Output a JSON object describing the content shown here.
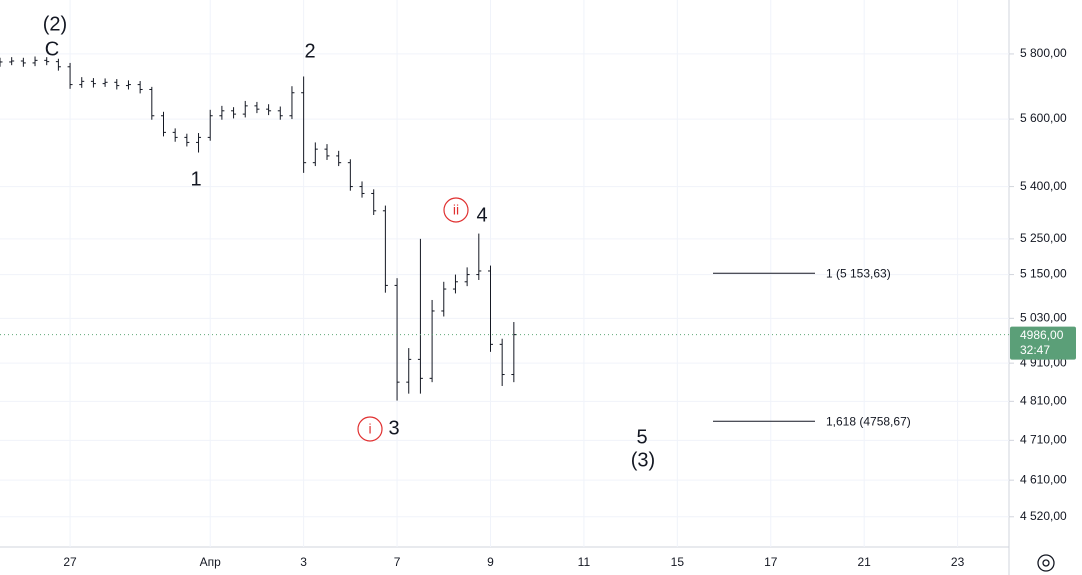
{
  "chart_data": {
    "type": "ohlc",
    "log_scale": true,
    "grid": true,
    "color": "#131722",
    "x": [
      -1.5,
      -1.25,
      -1,
      -0.75,
      -0.5,
      -0.25,
      0,
      0.25,
      0.5,
      0.75,
      1,
      1.25,
      1.5,
      1.75,
      2,
      2.25,
      2.5,
      2.75,
      3,
      3.25,
      3.5,
      3.75,
      4,
      4.25,
      4.5,
      4.75,
      5,
      5.25,
      5.5,
      5.75,
      6,
      6.25,
      6.5,
      6.75,
      7,
      7.25,
      7.5,
      7.75,
      8,
      8.25,
      8.5,
      8.75,
      9,
      9.25,
      9.5
    ],
    "open": [
      5770,
      5775,
      5778,
      5772,
      5780,
      5776,
      5760,
      5705,
      5715,
      5708,
      5712,
      5702,
      5705,
      5690,
      5610,
      5560,
      5545,
      5530,
      5545,
      5610,
      5625,
      5615,
      5640,
      5630,
      5625,
      5610,
      5680,
      5470,
      5510,
      5490,
      5470,
      5400,
      5380,
      5330,
      5120,
      4860,
      4920,
      4870,
      5050,
      5110,
      5130,
      5150,
      5160,
      4960,
      4880
    ],
    "high": [
      5788,
      5790,
      5788,
      5792,
      5790,
      5785,
      5772,
      5728,
      5725,
      5724,
      5722,
      5718,
      5716,
      5698,
      5622,
      5572,
      5556,
      5558,
      5628,
      5640,
      5636,
      5655,
      5652,
      5645,
      5638,
      5700,
      5730,
      5530,
      5525,
      5505,
      5480,
      5415,
      5392,
      5345,
      5140,
      4950,
      5250,
      5080,
      5130,
      5150,
      5170,
      5265,
      5175,
      4975,
      5020
    ],
    "low": [
      5760,
      5765,
      5760,
      5762,
      5765,
      5748,
      5692,
      5695,
      5696,
      5698,
      5690,
      5690,
      5678,
      5598,
      5548,
      5532,
      5518,
      5500,
      5535,
      5598,
      5602,
      5605,
      5618,
      5612,
      5598,
      5600,
      5440,
      5460,
      5478,
      5460,
      5388,
      5368,
      5318,
      5100,
      4812,
      4830,
      4830,
      4860,
      5035,
      5098,
      5118,
      5135,
      4940,
      4850,
      4860
    ],
    "close": [
      5775,
      5778,
      5772,
      5780,
      5776,
      5760,
      5705,
      5715,
      5708,
      5712,
      5702,
      5705,
      5690,
      5610,
      5560,
      5545,
      5530,
      5545,
      5610,
      5625,
      5615,
      5640,
      5630,
      5625,
      5610,
      5680,
      5470,
      5510,
      5490,
      5470,
      5400,
      5380,
      5330,
      5120,
      4860,
      4920,
      4870,
      5050,
      5110,
      5130,
      5150,
      5160,
      4960,
      4880,
      4986
    ],
    "xlim": [
      -1.5,
      20.1
    ],
    "xticks": [
      {
        "value": 0,
        "label": "27"
      },
      {
        "value": 3,
        "label": "Апр"
      },
      {
        "value": 5,
        "label": "3"
      },
      {
        "value": 7,
        "label": "7"
      },
      {
        "value": 9,
        "label": "9"
      },
      {
        "value": 11,
        "label": "11"
      },
      {
        "value": 13,
        "label": "15"
      },
      {
        "value": 15,
        "label": "17"
      },
      {
        "value": 17,
        "label": "21"
      },
      {
        "value": 19,
        "label": "23"
      }
    ],
    "ylim": [
      4447,
      5971
    ],
    "yticks": [
      {
        "value": 5800,
        "label": "5 800,00"
      },
      {
        "value": 5600,
        "label": "5 600,00"
      },
      {
        "value": 5400,
        "label": "5 400,00"
      },
      {
        "value": 5250,
        "label": "5 250,00"
      },
      {
        "value": 5150,
        "label": "5 150,00"
      },
      {
        "value": 5030,
        "label": "5 030,00"
      },
      {
        "value": 4910,
        "label": "4 910,00"
      },
      {
        "value": 4810,
        "label": "4 810,00"
      },
      {
        "value": 4710,
        "label": "4 710,00"
      },
      {
        "value": 4610,
        "label": "4 610,00"
      },
      {
        "value": 4520,
        "label": "4 520,00"
      }
    ],
    "wave_labels": [
      {
        "text": "(2)"
      },
      {
        "text": "C"
      },
      {
        "text": "1"
      },
      {
        "text": "2"
      },
      {
        "text": "i",
        "circled": true
      },
      {
        "text": "3"
      },
      {
        "text": "ii",
        "circled": true
      },
      {
        "text": "4"
      },
      {
        "text": "5"
      },
      {
        "text": "(3)"
      }
    ],
    "fib_levels": [
      {
        "level": 5153.63,
        "label": "1 (5 153,63)"
      },
      {
        "level": 4758.67,
        "label": "1,618 (4758,67)"
      }
    ],
    "last_price": {
      "value": 4986,
      "label": "4986,00"
    },
    "countdown": "32:47"
  }
}
